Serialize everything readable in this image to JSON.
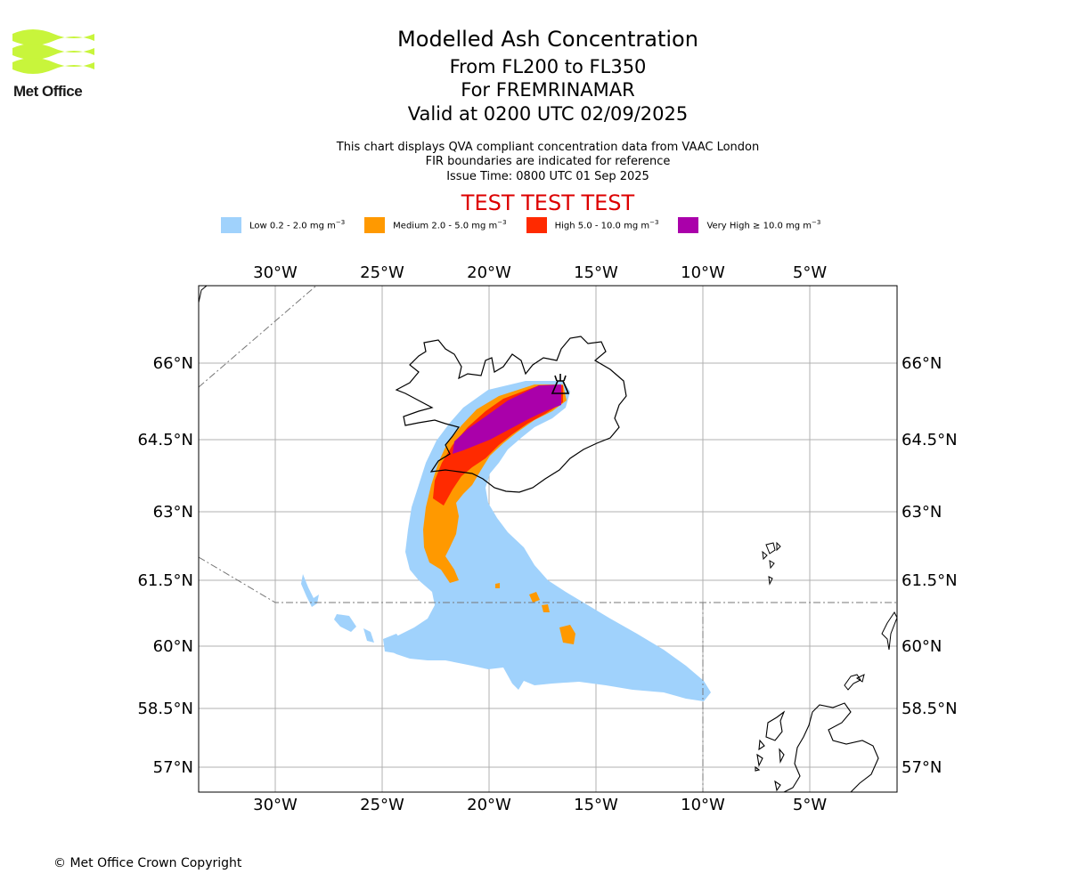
{
  "logo": {
    "text": "Met Office",
    "color": "#c8f53b"
  },
  "header": {
    "title": "Modelled Ash Concentration",
    "levels": "From FL200 to FL350",
    "region": "For FREMRINAMAR",
    "valid": "Valid at 0200 UTC 02/09/2025",
    "note1": "This chart displays QVA compliant concentration data from VAAC London",
    "note2": "FIR boundaries are indicated for reference",
    "note3": "Issue Time: 0800 UTC 01 Sep 2025",
    "test_banner": "TEST TEST TEST"
  },
  "legend": [
    {
      "label": "Low 0.2 - 2.0 mg m",
      "color": "#a0d2fc"
    },
    {
      "label": "Medium 2.0 - 5.0 mg m",
      "color": "#ff9900"
    },
    {
      "label": "High 5.0 - 10.0 mg m",
      "color": "#ff2a00"
    },
    {
      "label": "Very High ≥ 10.0 mg m",
      "color": "#aa00aa"
    }
  ],
  "legend_unit_exponent": "−3",
  "map": {
    "lon_range": [
      -33.6,
      -0.8
    ],
    "lat_range": [
      56.5,
      67.7
    ],
    "lon_ticks": [
      "30°W",
      "25°W",
      "20°W",
      "15°W",
      "10°W",
      "5°W"
    ],
    "lat_ticks": [
      "66°N",
      "64.5°N",
      "63°N",
      "61.5°N",
      "60°N",
      "58.5°N",
      "57°N"
    ],
    "source": "Fremrinamar",
    "source_symbol": "volcano-icon"
  },
  "copyright": "© Met Office Crown Copyright"
}
